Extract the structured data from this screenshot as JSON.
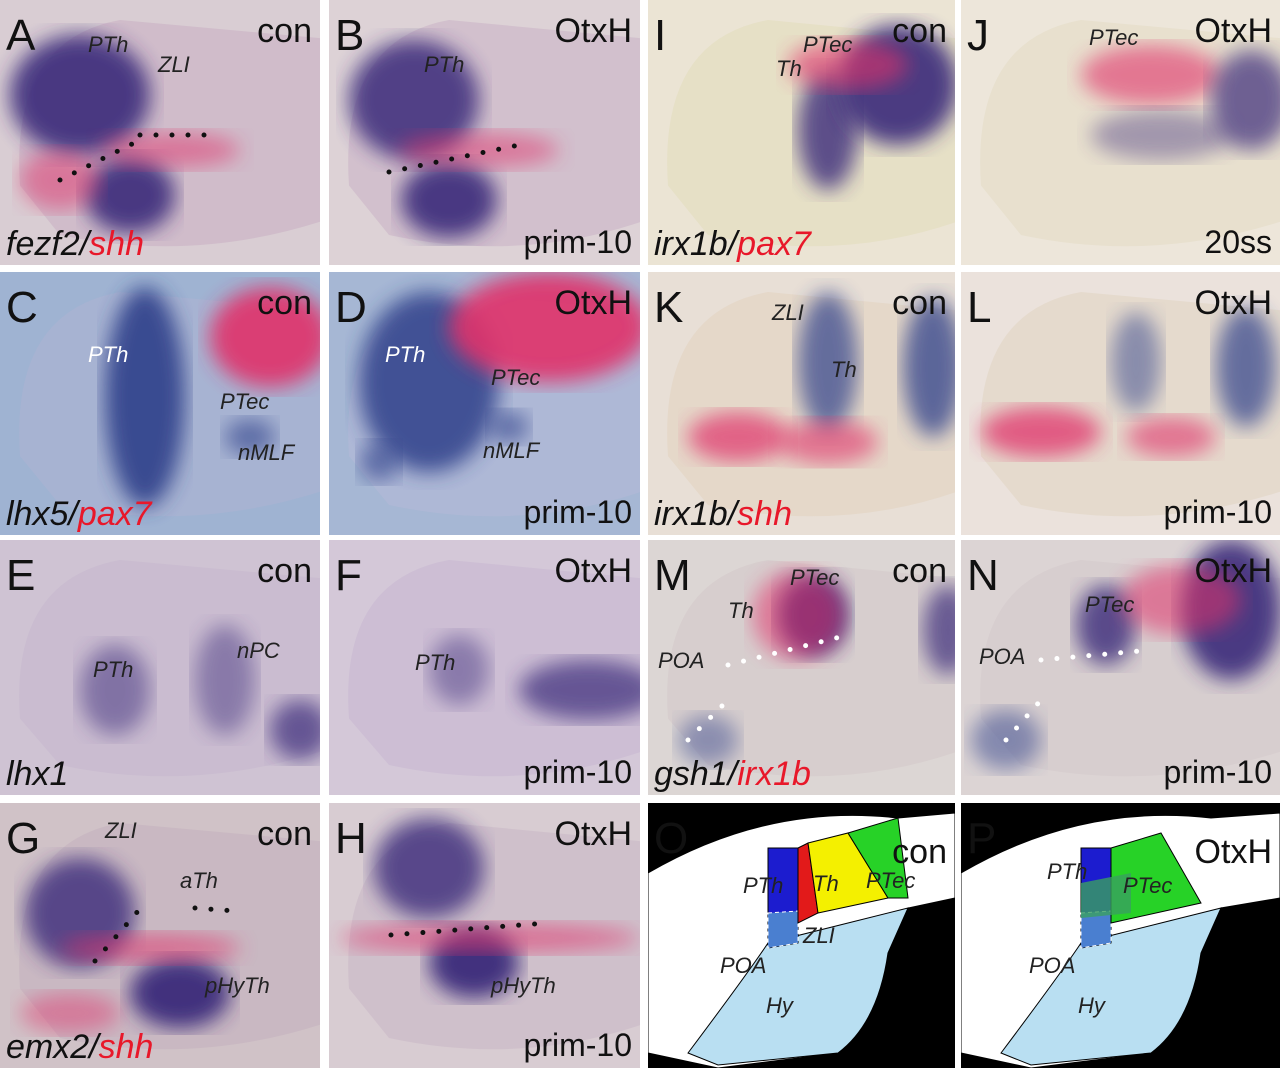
{
  "panels": [
    {
      "letter": "A",
      "condition": "con",
      "annotations": [
        "PTh",
        "ZLI"
      ],
      "probe": [
        "fezf2",
        "/",
        "shh"
      ]
    },
    {
      "letter": "B",
      "condition": "OtxH",
      "annotations": [
        "PTh"
      ],
      "stage": "prim-10"
    },
    {
      "letter": "C",
      "condition": "con",
      "annotations": [
        "PTh",
        "PTec",
        "nMLF"
      ],
      "probe": [
        "lhx5",
        "/",
        "pax7"
      ]
    },
    {
      "letter": "D",
      "condition": "OtxH",
      "annotations": [
        "PTh",
        "PTec",
        "nMLF"
      ],
      "stage": "prim-10"
    },
    {
      "letter": "E",
      "condition": "con",
      "annotations": [
        "PTh",
        "nPC"
      ],
      "probe": [
        "lhx1"
      ]
    },
    {
      "letter": "F",
      "condition": "OtxH",
      "annotations": [
        "PTh"
      ],
      "stage": "prim-10"
    },
    {
      "letter": "G",
      "condition": "con",
      "annotations": [
        "ZLI",
        "aTh",
        "pHyTh"
      ],
      "probe": [
        "emx2",
        "/",
        "shh"
      ]
    },
    {
      "letter": "H",
      "condition": "OtxH",
      "annotations": [
        "pHyTh"
      ],
      "stage": "prim-10"
    },
    {
      "letter": "I",
      "condition": "con",
      "annotations": [
        "Th",
        "PTec"
      ],
      "probe": [
        "irx1b",
        "/",
        "pax7"
      ]
    },
    {
      "letter": "J",
      "condition": "OtxH",
      "annotations": [
        "PTec"
      ],
      "stage": "20ss"
    },
    {
      "letter": "K",
      "condition": "con",
      "annotations": [
        "ZLI",
        "Th"
      ],
      "probe": [
        "irx1b",
        "/",
        "shh"
      ]
    },
    {
      "letter": "L",
      "condition": "OtxH",
      "stage": "prim-10"
    },
    {
      "letter": "M",
      "condition": "con",
      "annotations": [
        "PTec",
        "Th",
        "POA"
      ],
      "probe": [
        "gsh1",
        "/",
        "irx1b"
      ]
    },
    {
      "letter": "N",
      "condition": "OtxH",
      "annotations": [
        "PTec",
        "POA"
      ],
      "stage": "prim-10"
    },
    {
      "letter": "O",
      "condition": "con",
      "annotations": [
        "PTh",
        "Th",
        "PTec",
        "ZLI",
        "POA",
        "Hy"
      ]
    },
    {
      "letter": "P",
      "condition": "OtxH",
      "annotations": [
        "PTh",
        "PTec",
        "POA",
        "Hy"
      ]
    }
  ]
}
